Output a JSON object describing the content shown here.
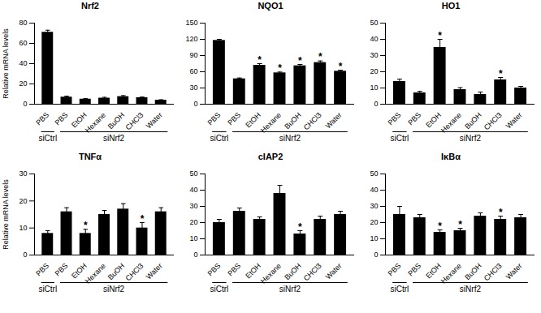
{
  "chart_data": [
    {
      "type": "bar",
      "title": "Nrf2",
      "ylabel": "Relative mRNA levels",
      "categories": [
        "PBS",
        "PBS",
        "EtOH",
        "Hexane",
        "BuOH",
        "CHCl3",
        "Water"
      ],
      "values": [
        71,
        7,
        5,
        6,
        7.5,
        6.5,
        4
      ],
      "errors": [
        2,
        1,
        0.5,
        0.8,
        1,
        0.6,
        0.4
      ],
      "annotations": [
        null,
        null,
        null,
        null,
        null,
        null,
        null
      ],
      "groups": [
        {
          "label": "siCtrl",
          "range": [
            0,
            0
          ]
        },
        {
          "label": "siNrf2",
          "range": [
            1,
            6
          ]
        }
      ],
      "color": "#000000",
      "ylim": [
        0,
        80
      ],
      "yticks": [
        0,
        20,
        40,
        60,
        80
      ]
    },
    {
      "type": "bar",
      "title": "NQO1",
      "categories": [
        "PBS",
        "PBS",
        "EtOH",
        "Hexane",
        "BuOH",
        "CHCl3",
        "Water"
      ],
      "values": [
        118,
        47,
        72,
        58,
        71,
        77,
        61
      ],
      "errors": [
        2,
        1.5,
        3,
        1.5,
        2.5,
        3,
        2
      ],
      "annotations": [
        null,
        null,
        "*",
        "*",
        "*",
        "*",
        "*"
      ],
      "groups": [
        {
          "label": "siCtrl",
          "range": [
            0,
            0
          ]
        },
        {
          "label": "siNrf2",
          "range": [
            1,
            6
          ]
        }
      ],
      "color": "#000000",
      "ylim": [
        0,
        150
      ],
      "yticks": [
        0,
        30,
        60,
        90,
        120,
        150
      ]
    },
    {
      "type": "bar",
      "title": "HO1",
      "categories": [
        "PBS",
        "PBS",
        "EtOH",
        "Hexane",
        "BuOH",
        "CHCl3",
        "Water"
      ],
      "values": [
        14,
        7,
        35,
        9,
        6,
        15,
        10
      ],
      "errors": [
        1.5,
        1,
        5,
        1.2,
        1.5,
        1.5,
        1
      ],
      "annotations": [
        null,
        null,
        "*",
        null,
        null,
        "*",
        null
      ],
      "groups": [
        {
          "label": "siCtrl",
          "range": [
            0,
            0
          ]
        },
        {
          "label": "siNrf2",
          "range": [
            1,
            6
          ]
        }
      ],
      "color": "#000000",
      "ylim": [
        0,
        50
      ],
      "yticks": [
        0,
        10,
        20,
        30,
        40,
        50
      ]
    },
    {
      "type": "bar",
      "title": "TNFα",
      "ylabel": "Relative mRNA levels",
      "categories": [
        "PBS",
        "PBS",
        "EtOH",
        "Hexane",
        "BuOH",
        "CHCl3",
        "Water"
      ],
      "values": [
        8,
        16,
        8,
        15,
        17,
        10,
        16
      ],
      "errors": [
        1,
        1.5,
        1.5,
        1.5,
        2,
        2,
        1.5
      ],
      "annotations": [
        null,
        null,
        "*",
        null,
        null,
        "*",
        null
      ],
      "groups": [
        {
          "label": "siCtrl",
          "range": [
            0,
            0
          ]
        },
        {
          "label": "siNrf2",
          "range": [
            1,
            6
          ]
        }
      ],
      "color": "#000000",
      "ylim": [
        0,
        30
      ],
      "yticks": [
        0,
        10,
        20,
        30
      ]
    },
    {
      "type": "bar",
      "title": "cIAP2",
      "categories": [
        "PBS",
        "PBS",
        "EtOH",
        "Hexane",
        "BuOH",
        "CHCl3",
        "Water"
      ],
      "values": [
        20,
        27,
        22,
        38,
        13,
        22,
        25
      ],
      "errors": [
        2,
        2,
        1.5,
        5,
        2,
        2,
        2
      ],
      "annotations": [
        null,
        null,
        null,
        null,
        "*",
        null,
        null
      ],
      "groups": [
        {
          "label": "siCtrl",
          "range": [
            0,
            0
          ]
        },
        {
          "label": "siNrf2",
          "range": [
            1,
            6
          ]
        }
      ],
      "color": "#000000",
      "ylim": [
        0,
        50
      ],
      "yticks": [
        0,
        10,
        20,
        30,
        40,
        50
      ]
    },
    {
      "type": "bar",
      "title": "IκBα",
      "categories": [
        "PBS",
        "PBS",
        "EtOH",
        "Hexane",
        "BuOH",
        "CHCl3",
        "Water"
      ],
      "values": [
        25,
        23,
        14,
        15,
        24,
        22,
        23
      ],
      "errors": [
        5,
        2,
        1.5,
        1.5,
        2,
        2,
        2
      ],
      "annotations": [
        null,
        null,
        "*",
        "*",
        null,
        "*",
        null
      ],
      "groups": [
        {
          "label": "siCtrl",
          "range": [
            0,
            0
          ]
        },
        {
          "label": "siNrf2",
          "range": [
            1,
            6
          ]
        }
      ],
      "color": "#000000",
      "ylim": [
        0,
        50
      ],
      "yticks": [
        0,
        10,
        20,
        30,
        40,
        50
      ]
    }
  ]
}
